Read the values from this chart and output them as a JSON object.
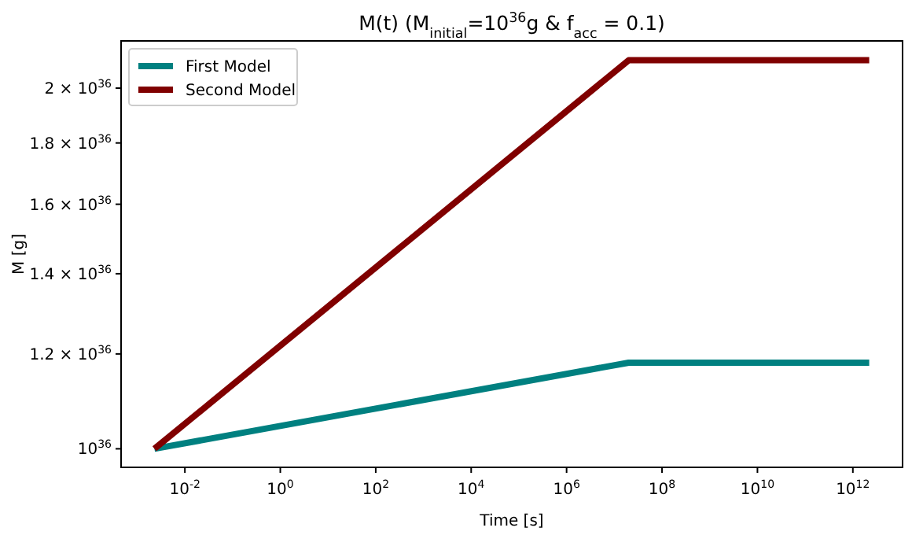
{
  "chart_data": {
    "type": "line",
    "title": "M(t) (M$_{initial}$=10$^{36}$g & f$_{acc}$ = 0.1)",
    "xlabel": "Time [s]",
    "ylabel": "M [g]",
    "x": [
      0.0023,
      20000000.0,
      2200000000000.0
    ],
    "series": [
      {
        "name": "First Model",
        "color": "#008080",
        "values": [
          1e+36,
          1.18e+36,
          1.18e+36
        ]
      },
      {
        "name": "Second Model",
        "color": "#800000",
        "values": [
          1e+36,
          2.11e+36,
          2.11e+36
        ]
      }
    ],
    "log": "xy",
    "xlim": [
      0.00046,
      11000000000000.0
    ],
    "ylim": [
      9.65e+35,
      2.19e+36
    ],
    "xticks": [
      {
        "value": 0.01,
        "label": "10$^{-2}$"
      },
      {
        "value": 1,
        "label": "10$^{0}$"
      },
      {
        "value": 100,
        "label": "10$^{2}$"
      },
      {
        "value": 10000,
        "label": "10$^{4}$"
      },
      {
        "value": 1000000,
        "label": "10$^{6}$"
      },
      {
        "value": 100000000,
        "label": "10$^{8}$"
      },
      {
        "value": 10000000000,
        "label": "10$^{10}$"
      },
      {
        "value": 1000000000000,
        "label": "10$^{12}$"
      }
    ],
    "yticks": [
      {
        "value": 1e+36,
        "label": "10$^{36}$"
      },
      {
        "value": 1.2e+36,
        "label": "1.2 × 10$^{36}$"
      },
      {
        "value": 1.4e+36,
        "label": "1.4 × 10$^{36}$"
      },
      {
        "value": 1.6e+36,
        "label": "1.6 × 10$^{36}$"
      },
      {
        "value": 1.8e+36,
        "label": "1.8 × 10$^{36}$"
      },
      {
        "value": 2e+36,
        "label": "2 × 10$^{36}$"
      }
    ],
    "grid": false,
    "legend": "top left",
    "marker": "none",
    "line_style": "solid"
  }
}
